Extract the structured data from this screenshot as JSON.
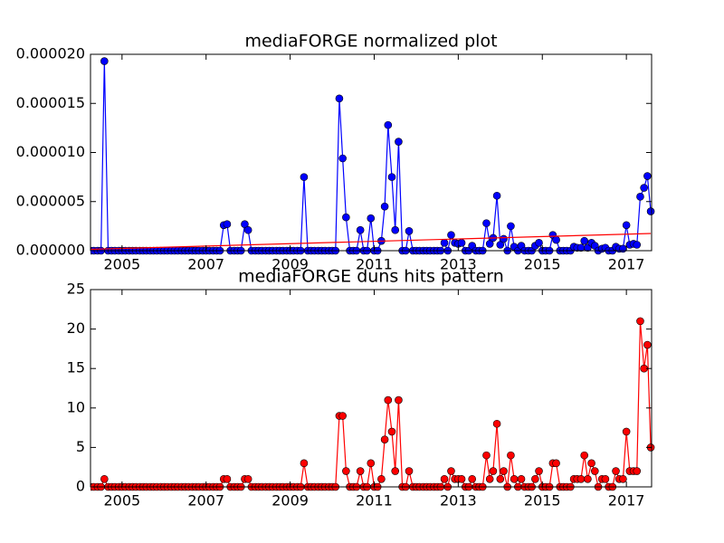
{
  "chart_data": [
    {
      "type": "line",
      "title": "mediaFORGE normalized plot",
      "x": [
        2004.25,
        2004.33,
        2004.42,
        2004.5,
        2004.58,
        2004.67,
        2004.75,
        2004.83,
        2004.92,
        2005,
        2005.08,
        2005.17,
        2005.25,
        2005.33,
        2005.42,
        2005.5,
        2005.58,
        2005.67,
        2005.75,
        2005.83,
        2005.92,
        2006,
        2006.08,
        2006.17,
        2006.25,
        2006.33,
        2006.42,
        2006.5,
        2006.58,
        2006.67,
        2006.75,
        2006.83,
        2006.92,
        2007,
        2007.08,
        2007.17,
        2007.25,
        2007.33,
        2007.42,
        2007.5,
        2007.58,
        2007.67,
        2007.75,
        2007.83,
        2007.92,
        2008,
        2008.08,
        2008.17,
        2008.25,
        2008.33,
        2008.42,
        2008.5,
        2008.58,
        2008.67,
        2008.75,
        2008.83,
        2008.92,
        2009,
        2009.08,
        2009.17,
        2009.25,
        2009.33,
        2009.42,
        2009.5,
        2009.58,
        2009.67,
        2009.75,
        2009.83,
        2009.92,
        2010,
        2010.08,
        2010.17,
        2010.25,
        2010.33,
        2010.42,
        2010.5,
        2010.58,
        2010.67,
        2010.75,
        2010.83,
        2010.92,
        2011,
        2011.08,
        2011.17,
        2011.25,
        2011.33,
        2011.42,
        2011.5,
        2011.58,
        2011.67,
        2011.75,
        2011.83,
        2011.92,
        2012,
        2012.08,
        2012.17,
        2012.25,
        2012.33,
        2012.42,
        2012.5,
        2012.58,
        2012.67,
        2012.75,
        2012.83,
        2012.92,
        2013,
        2013.08,
        2013.17,
        2013.25,
        2013.33,
        2013.42,
        2013.5,
        2013.58,
        2013.67,
        2013.75,
        2013.83,
        2013.92,
        2014,
        2014.08,
        2014.17,
        2014.25,
        2014.33,
        2014.42,
        2014.5,
        2014.58,
        2014.67,
        2014.75,
        2014.83,
        2014.92,
        2015,
        2015.08,
        2015.17,
        2015.25,
        2015.33,
        2015.42,
        2015.5,
        2015.58,
        2015.67,
        2015.75,
        2015.83,
        2015.92,
        2016,
        2016.08,
        2016.17,
        2016.25,
        2016.33,
        2016.42,
        2016.5,
        2016.58,
        2016.67,
        2016.75,
        2016.83,
        2016.92,
        2017,
        2017.08,
        2017.17,
        2017.25,
        2017.33,
        2017.42,
        2017.5,
        2017.58
      ],
      "series": [
        {
          "color": "#0000ff",
          "values": [
            0,
            0,
            0,
            0,
            1.93e-05,
            0,
            0,
            0,
            0,
            0,
            0,
            0,
            0,
            0,
            0,
            0,
            0,
            0,
            0,
            0,
            0,
            0,
            0,
            0,
            0,
            0,
            0,
            0,
            0,
            0,
            0,
            0,
            0,
            0,
            0,
            0,
            0,
            0,
            2.6e-06,
            2.7e-06,
            0,
            0,
            0,
            0,
            2.7e-06,
            2.1e-06,
            0,
            0,
            0,
            0,
            0,
            0,
            0,
            0,
            0,
            0,
            0,
            0,
            0,
            0,
            0,
            7.5e-06,
            0,
            0,
            0,
            0,
            0,
            0,
            0,
            0,
            0,
            1.55e-05,
            9.4e-06,
            3.4e-06,
            0,
            0,
            0,
            2.1e-06,
            0,
            0,
            3.3e-06,
            0,
            0,
            1e-06,
            4.5e-06,
            1.28e-05,
            7.5e-06,
            2.1e-06,
            1.11e-05,
            0,
            0,
            2e-06,
            0,
            0,
            0,
            0,
            0,
            0,
            0,
            0,
            0,
            8e-07,
            0,
            1.6e-06,
            8e-07,
            7e-07,
            8e-07,
            0,
            0,
            5e-07,
            0,
            0,
            0,
            2.8e-06,
            7e-07,
            1.3e-06,
            5.6e-06,
            6e-07,
            1.2e-06,
            0,
            2.5e-06,
            4e-07,
            0,
            5e-07,
            0,
            0,
            0,
            5e-07,
            8e-07,
            0,
            0,
            0,
            1.6e-06,
            1.1e-06,
            0,
            0,
            0,
            0,
            4e-07,
            3e-07,
            3e-07,
            1e-06,
            3e-07,
            8e-07,
            5e-07,
            0,
            2e-07,
            3e-07,
            0,
            0,
            4e-07,
            2e-07,
            2e-07,
            2.6e-06,
            6e-07,
            7e-07,
            6e-07,
            5.5e-06,
            6.4e-06,
            7.6e-06,
            4e-06
          ]
        }
      ],
      "trend": {
        "x": [
          2004.25,
          2017.58
        ],
        "values": [
          1.4e-07,
          1.75e-06
        ],
        "color": "#ff0000"
      },
      "xlim": [
        2004.25,
        2017.6
      ],
      "xticks": [
        2005,
        2007,
        2009,
        2011,
        2013,
        2015,
        2017
      ],
      "ylim": [
        0,
        2e-05
      ],
      "yticks": [
        {
          "value": 0,
          "label": "0.000000"
        },
        {
          "value": 5e-06,
          "label": "0.000005"
        },
        {
          "value": 1e-05,
          "label": "0.000010"
        },
        {
          "value": 1.5e-05,
          "label": "0.000015"
        },
        {
          "value": 2e-05,
          "label": "0.000020"
        }
      ]
    },
    {
      "type": "line",
      "title": "mediaFORGE duns hits pattern",
      "x": [
        2004.25,
        2004.33,
        2004.42,
        2004.5,
        2004.58,
        2004.67,
        2004.75,
        2004.83,
        2004.92,
        2005,
        2005.08,
        2005.17,
        2005.25,
        2005.33,
        2005.42,
        2005.5,
        2005.58,
        2005.67,
        2005.75,
        2005.83,
        2005.92,
        2006,
        2006.08,
        2006.17,
        2006.25,
        2006.33,
        2006.42,
        2006.5,
        2006.58,
        2006.67,
        2006.75,
        2006.83,
        2006.92,
        2007,
        2007.08,
        2007.17,
        2007.25,
        2007.33,
        2007.42,
        2007.5,
        2007.58,
        2007.67,
        2007.75,
        2007.83,
        2007.92,
        2008,
        2008.08,
        2008.17,
        2008.25,
        2008.33,
        2008.42,
        2008.5,
        2008.58,
        2008.67,
        2008.75,
        2008.83,
        2008.92,
        2009,
        2009.08,
        2009.17,
        2009.25,
        2009.33,
        2009.42,
        2009.5,
        2009.58,
        2009.67,
        2009.75,
        2009.83,
        2009.92,
        2010,
        2010.08,
        2010.17,
        2010.25,
        2010.33,
        2010.42,
        2010.5,
        2010.58,
        2010.67,
        2010.75,
        2010.83,
        2010.92,
        2011,
        2011.08,
        2011.17,
        2011.25,
        2011.33,
        2011.42,
        2011.5,
        2011.58,
        2011.67,
        2011.75,
        2011.83,
        2011.92,
        2012,
        2012.08,
        2012.17,
        2012.25,
        2012.33,
        2012.42,
        2012.5,
        2012.58,
        2012.67,
        2012.75,
        2012.83,
        2012.92,
        2013,
        2013.08,
        2013.17,
        2013.25,
        2013.33,
        2013.42,
        2013.5,
        2013.58,
        2013.67,
        2013.75,
        2013.83,
        2013.92,
        2014,
        2014.08,
        2014.17,
        2014.25,
        2014.33,
        2014.42,
        2014.5,
        2014.58,
        2014.67,
        2014.75,
        2014.83,
        2014.92,
        2015,
        2015.08,
        2015.17,
        2015.25,
        2015.33,
        2015.42,
        2015.5,
        2015.58,
        2015.67,
        2015.75,
        2015.83,
        2015.92,
        2016,
        2016.08,
        2016.17,
        2016.25,
        2016.33,
        2016.42,
        2016.5,
        2016.58,
        2016.67,
        2016.75,
        2016.83,
        2016.92,
        2017,
        2017.08,
        2017.17,
        2017.25,
        2017.33,
        2017.42,
        2017.5,
        2017.58
      ],
      "series": [
        {
          "color": "#ff0000",
          "values": [
            0,
            0,
            0,
            0,
            1,
            0,
            0,
            0,
            0,
            0,
            0,
            0,
            0,
            0,
            0,
            0,
            0,
            0,
            0,
            0,
            0,
            0,
            0,
            0,
            0,
            0,
            0,
            0,
            0,
            0,
            0,
            0,
            0,
            0,
            0,
            0,
            0,
            0,
            1,
            1,
            0,
            0,
            0,
            0,
            1,
            1,
            0,
            0,
            0,
            0,
            0,
            0,
            0,
            0,
            0,
            0,
            0,
            0,
            0,
            0,
            0,
            3,
            0,
            0,
            0,
            0,
            0,
            0,
            0,
            0,
            0,
            9,
            9,
            2,
            0,
            0,
            0,
            2,
            0,
            0,
            3,
            0,
            0,
            1,
            6,
            11,
            7,
            2,
            11,
            0,
            0,
            2,
            0,
            0,
            0,
            0,
            0,
            0,
            0,
            0,
            0,
            1,
            0,
            2,
            1,
            1,
            1,
            0,
            0,
            1,
            0,
            0,
            0,
            4,
            1,
            2,
            8,
            1,
            2,
            0,
            4,
            1,
            0,
            1,
            0,
            0,
            0,
            1,
            2,
            0,
            0,
            0,
            3,
            3,
            0,
            0,
            0,
            0,
            1,
            1,
            1,
            4,
            1,
            3,
            2,
            0,
            1,
            1,
            0,
            0,
            2,
            1,
            1,
            7,
            2,
            2,
            2,
            21,
            15,
            18,
            5
          ]
        }
      ],
      "xlim": [
        2004.25,
        2017.6
      ],
      "xticks": [
        2005,
        2007,
        2009,
        2011,
        2013,
        2015,
        2017
      ],
      "ylim": [
        0,
        25
      ],
      "yticks": [
        0,
        5,
        10,
        15,
        20,
        25
      ]
    }
  ]
}
